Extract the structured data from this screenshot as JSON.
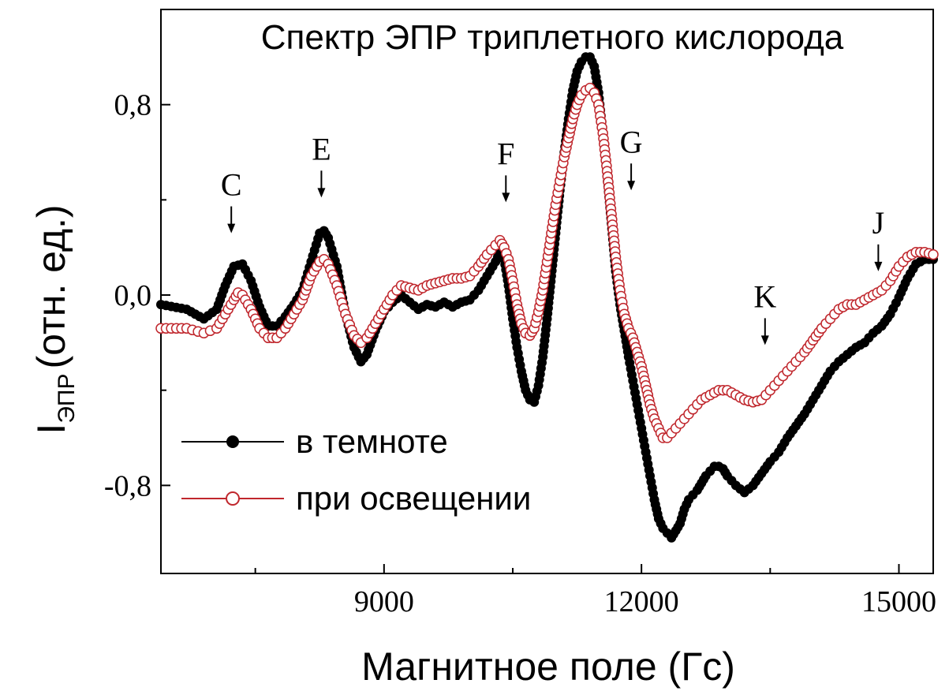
{
  "chart_data": {
    "type": "scatter",
    "title": "Спектр ЭПР триплетного кислорода",
    "xlabel": "Магнитное поле (Гс)",
    "ylabel_main": "I",
    "ylabel_sub": "ЭПР",
    "ylabel_rest": "(отн. ед.)",
    "xlim": [
      6400,
      15400
    ],
    "ylim": [
      -1.17,
      1.2
    ],
    "x_ticks": [
      {
        "value": 9000,
        "label": "9000"
      },
      {
        "value": 12000,
        "label": "12000"
      },
      {
        "value": 15000,
        "label": "15000"
      }
    ],
    "y_ticks": [
      {
        "value": 0.8,
        "label": "0,8"
      },
      {
        "value": 0.0,
        "label": "0,0"
      },
      {
        "value": -0.8,
        "label": "-0,8"
      }
    ],
    "grid": false,
    "legend_position": "bottom-left",
    "series": [
      {
        "name": "в темноте",
        "marker": "filled-circle",
        "color": "#000000",
        "line_color": "#000000",
        "points": [
          [
            6400,
            -0.04
          ],
          [
            6700,
            -0.06
          ],
          [
            6900,
            -0.1
          ],
          [
            7050,
            -0.06
          ],
          [
            7150,
            0.04
          ],
          [
            7250,
            0.12
          ],
          [
            7350,
            0.13
          ],
          [
            7450,
            0.06
          ],
          [
            7550,
            -0.05
          ],
          [
            7650,
            -0.13
          ],
          [
            7750,
            -0.13
          ],
          [
            7850,
            -0.09
          ],
          [
            7950,
            -0.04
          ],
          [
            8050,
            0.02
          ],
          [
            8150,
            0.14
          ],
          [
            8250,
            0.26
          ],
          [
            8300,
            0.27
          ],
          [
            8350,
            0.24
          ],
          [
            8450,
            0.12
          ],
          [
            8550,
            -0.08
          ],
          [
            8650,
            -0.22
          ],
          [
            8730,
            -0.28
          ],
          [
            8800,
            -0.25
          ],
          [
            8900,
            -0.15
          ],
          [
            9000,
            -0.07
          ],
          [
            9100,
            -0.03
          ],
          [
            9200,
            0.0
          ],
          [
            9300,
            -0.03
          ],
          [
            9400,
            -0.06
          ],
          [
            9500,
            -0.04
          ],
          [
            9600,
            -0.05
          ],
          [
            9700,
            -0.03
          ],
          [
            9800,
            -0.05
          ],
          [
            9900,
            -0.03
          ],
          [
            10000,
            -0.02
          ],
          [
            10100,
            0.02
          ],
          [
            10200,
            0.08
          ],
          [
            10300,
            0.14
          ],
          [
            10350,
            0.18
          ],
          [
            10400,
            0.15
          ],
          [
            10450,
            0.04
          ],
          [
            10500,
            -0.1
          ],
          [
            10550,
            -0.22
          ],
          [
            10600,
            -0.32
          ],
          [
            10650,
            -0.4
          ],
          [
            10700,
            -0.44
          ],
          [
            10750,
            -0.45
          ],
          [
            10800,
            -0.38
          ],
          [
            10850,
            -0.26
          ],
          [
            10900,
            -0.1
          ],
          [
            10950,
            0.08
          ],
          [
            11000,
            0.26
          ],
          [
            11050,
            0.44
          ],
          [
            11100,
            0.6
          ],
          [
            11150,
            0.74
          ],
          [
            11200,
            0.86
          ],
          [
            11250,
            0.94
          ],
          [
            11300,
            0.98
          ],
          [
            11350,
            1.0
          ],
          [
            11400,
            1.0
          ],
          [
            11450,
            0.96
          ],
          [
            11500,
            0.85
          ],
          [
            11550,
            0.68
          ],
          [
            11600,
            0.5
          ],
          [
            11650,
            0.3
          ],
          [
            11700,
            0.1
          ],
          [
            11750,
            -0.04
          ],
          [
            11800,
            -0.15
          ],
          [
            11850,
            -0.26
          ],
          [
            11900,
            -0.36
          ],
          [
            11950,
            -0.46
          ],
          [
            12000,
            -0.56
          ],
          [
            12050,
            -0.66
          ],
          [
            12100,
            -0.76
          ],
          [
            12150,
            -0.86
          ],
          [
            12200,
            -0.94
          ],
          [
            12250,
            -0.98
          ],
          [
            12300,
            -1.0
          ],
          [
            12350,
            -1.02
          ],
          [
            12400,
            -0.99
          ],
          [
            12450,
            -0.96
          ],
          [
            12500,
            -0.9
          ],
          [
            12550,
            -0.86
          ],
          [
            12600,
            -0.84
          ],
          [
            12650,
            -0.82
          ],
          [
            12700,
            -0.79
          ],
          [
            12750,
            -0.76
          ],
          [
            12800,
            -0.74
          ],
          [
            12850,
            -0.72
          ],
          [
            12900,
            -0.72
          ],
          [
            12950,
            -0.73
          ],
          [
            13000,
            -0.76
          ],
          [
            13100,
            -0.8
          ],
          [
            13200,
            -0.83
          ],
          [
            13300,
            -0.8
          ],
          [
            13400,
            -0.75
          ],
          [
            13500,
            -0.7
          ],
          [
            13600,
            -0.66
          ],
          [
            13700,
            -0.6
          ],
          [
            13800,
            -0.55
          ],
          [
            13900,
            -0.5
          ],
          [
            14000,
            -0.44
          ],
          [
            14100,
            -0.38
          ],
          [
            14200,
            -0.32
          ],
          [
            14300,
            -0.28
          ],
          [
            14400,
            -0.25
          ],
          [
            14500,
            -0.22
          ],
          [
            14600,
            -0.2
          ],
          [
            14700,
            -0.16
          ],
          [
            14800,
            -0.13
          ],
          [
            14900,
            -0.08
          ],
          [
            15000,
            -0.01
          ],
          [
            15100,
            0.07
          ],
          [
            15200,
            0.13
          ],
          [
            15300,
            0.15
          ],
          [
            15400,
            0.15
          ]
        ]
      },
      {
        "name": "при освещении",
        "marker": "open-circle",
        "color": "#c0272d",
        "line_color": "#c0272d",
        "points": [
          [
            6400,
            -0.14
          ],
          [
            6700,
            -0.14
          ],
          [
            6900,
            -0.16
          ],
          [
            7050,
            -0.14
          ],
          [
            7150,
            -0.08
          ],
          [
            7250,
            -0.02
          ],
          [
            7300,
            0.01
          ],
          [
            7350,
            0.0
          ],
          [
            7450,
            -0.06
          ],
          [
            7550,
            -0.14
          ],
          [
            7650,
            -0.18
          ],
          [
            7750,
            -0.18
          ],
          [
            7850,
            -0.14
          ],
          [
            7950,
            -0.08
          ],
          [
            8050,
            -0.02
          ],
          [
            8150,
            0.08
          ],
          [
            8250,
            0.14
          ],
          [
            8300,
            0.15
          ],
          [
            8350,
            0.13
          ],
          [
            8450,
            0.04
          ],
          [
            8550,
            -0.08
          ],
          [
            8650,
            -0.17
          ],
          [
            8730,
            -0.2
          ],
          [
            8800,
            -0.18
          ],
          [
            8900,
            -0.12
          ],
          [
            9000,
            -0.06
          ],
          [
            9100,
            0.0
          ],
          [
            9200,
            0.04
          ],
          [
            9300,
            0.03
          ],
          [
            9400,
            0.02
          ],
          [
            9500,
            0.04
          ],
          [
            9600,
            0.05
          ],
          [
            9700,
            0.06
          ],
          [
            9800,
            0.07
          ],
          [
            9900,
            0.07
          ],
          [
            10000,
            0.08
          ],
          [
            10100,
            0.12
          ],
          [
            10200,
            0.17
          ],
          [
            10300,
            0.21
          ],
          [
            10350,
            0.23
          ],
          [
            10400,
            0.2
          ],
          [
            10450,
            0.15
          ],
          [
            10500,
            0.06
          ],
          [
            10550,
            -0.04
          ],
          [
            10600,
            -0.12
          ],
          [
            10650,
            -0.16
          ],
          [
            10700,
            -0.17
          ],
          [
            10750,
            -0.14
          ],
          [
            10800,
            -0.07
          ],
          [
            10850,
            0.02
          ],
          [
            10900,
            0.14
          ],
          [
            10950,
            0.26
          ],
          [
            11000,
            0.38
          ],
          [
            11050,
            0.48
          ],
          [
            11100,
            0.58
          ],
          [
            11150,
            0.66
          ],
          [
            11200,
            0.74
          ],
          [
            11250,
            0.8
          ],
          [
            11300,
            0.84
          ],
          [
            11350,
            0.86
          ],
          [
            11400,
            0.87
          ],
          [
            11450,
            0.85
          ],
          [
            11500,
            0.8
          ],
          [
            11550,
            0.68
          ],
          [
            11600,
            0.52
          ],
          [
            11650,
            0.34
          ],
          [
            11700,
            0.16
          ],
          [
            11750,
            0.02
          ],
          [
            11800,
            -0.08
          ],
          [
            11850,
            -0.14
          ],
          [
            11900,
            -0.18
          ],
          [
            11950,
            -0.24
          ],
          [
            12000,
            -0.3
          ],
          [
            12050,
            -0.38
          ],
          [
            12100,
            -0.46
          ],
          [
            12150,
            -0.52
          ],
          [
            12200,
            -0.56
          ],
          [
            12250,
            -0.6
          ],
          [
            12300,
            -0.6
          ],
          [
            12350,
            -0.58
          ],
          [
            12400,
            -0.56
          ],
          [
            12450,
            -0.54
          ],
          [
            12500,
            -0.52
          ],
          [
            12600,
            -0.48
          ],
          [
            12700,
            -0.44
          ],
          [
            12800,
            -0.42
          ],
          [
            12900,
            -0.4
          ],
          [
            13000,
            -0.4
          ],
          [
            13100,
            -0.42
          ],
          [
            13200,
            -0.44
          ],
          [
            13300,
            -0.45
          ],
          [
            13400,
            -0.44
          ],
          [
            13500,
            -0.4
          ],
          [
            13600,
            -0.36
          ],
          [
            13700,
            -0.32
          ],
          [
            13800,
            -0.28
          ],
          [
            13900,
            -0.24
          ],
          [
            14000,
            -0.19
          ],
          [
            14100,
            -0.14
          ],
          [
            14200,
            -0.1
          ],
          [
            14300,
            -0.06
          ],
          [
            14400,
            -0.04
          ],
          [
            14500,
            -0.04
          ],
          [
            14600,
            -0.02
          ],
          [
            14700,
            0.0
          ],
          [
            14800,
            0.02
          ],
          [
            14900,
            0.06
          ],
          [
            15000,
            0.12
          ],
          [
            15100,
            0.16
          ],
          [
            15200,
            0.18
          ],
          [
            15300,
            0.18
          ],
          [
            15400,
            0.17
          ]
        ]
      }
    ],
    "annotations": [
      {
        "label": "C",
        "x": 7220,
        "y_arrow_tip": 0.26
      },
      {
        "label": "E",
        "x": 8270,
        "y_arrow_tip": 0.41
      },
      {
        "label": "F",
        "x": 10420,
        "y_arrow_tip": 0.39
      },
      {
        "label": "G",
        "x": 11880,
        "y_arrow_tip": 0.44
      },
      {
        "label": "K",
        "x": 13440,
        "y_arrow_tip": -0.21
      },
      {
        "label": "J",
        "x": 14760,
        "y_arrow_tip": 0.1
      }
    ]
  }
}
